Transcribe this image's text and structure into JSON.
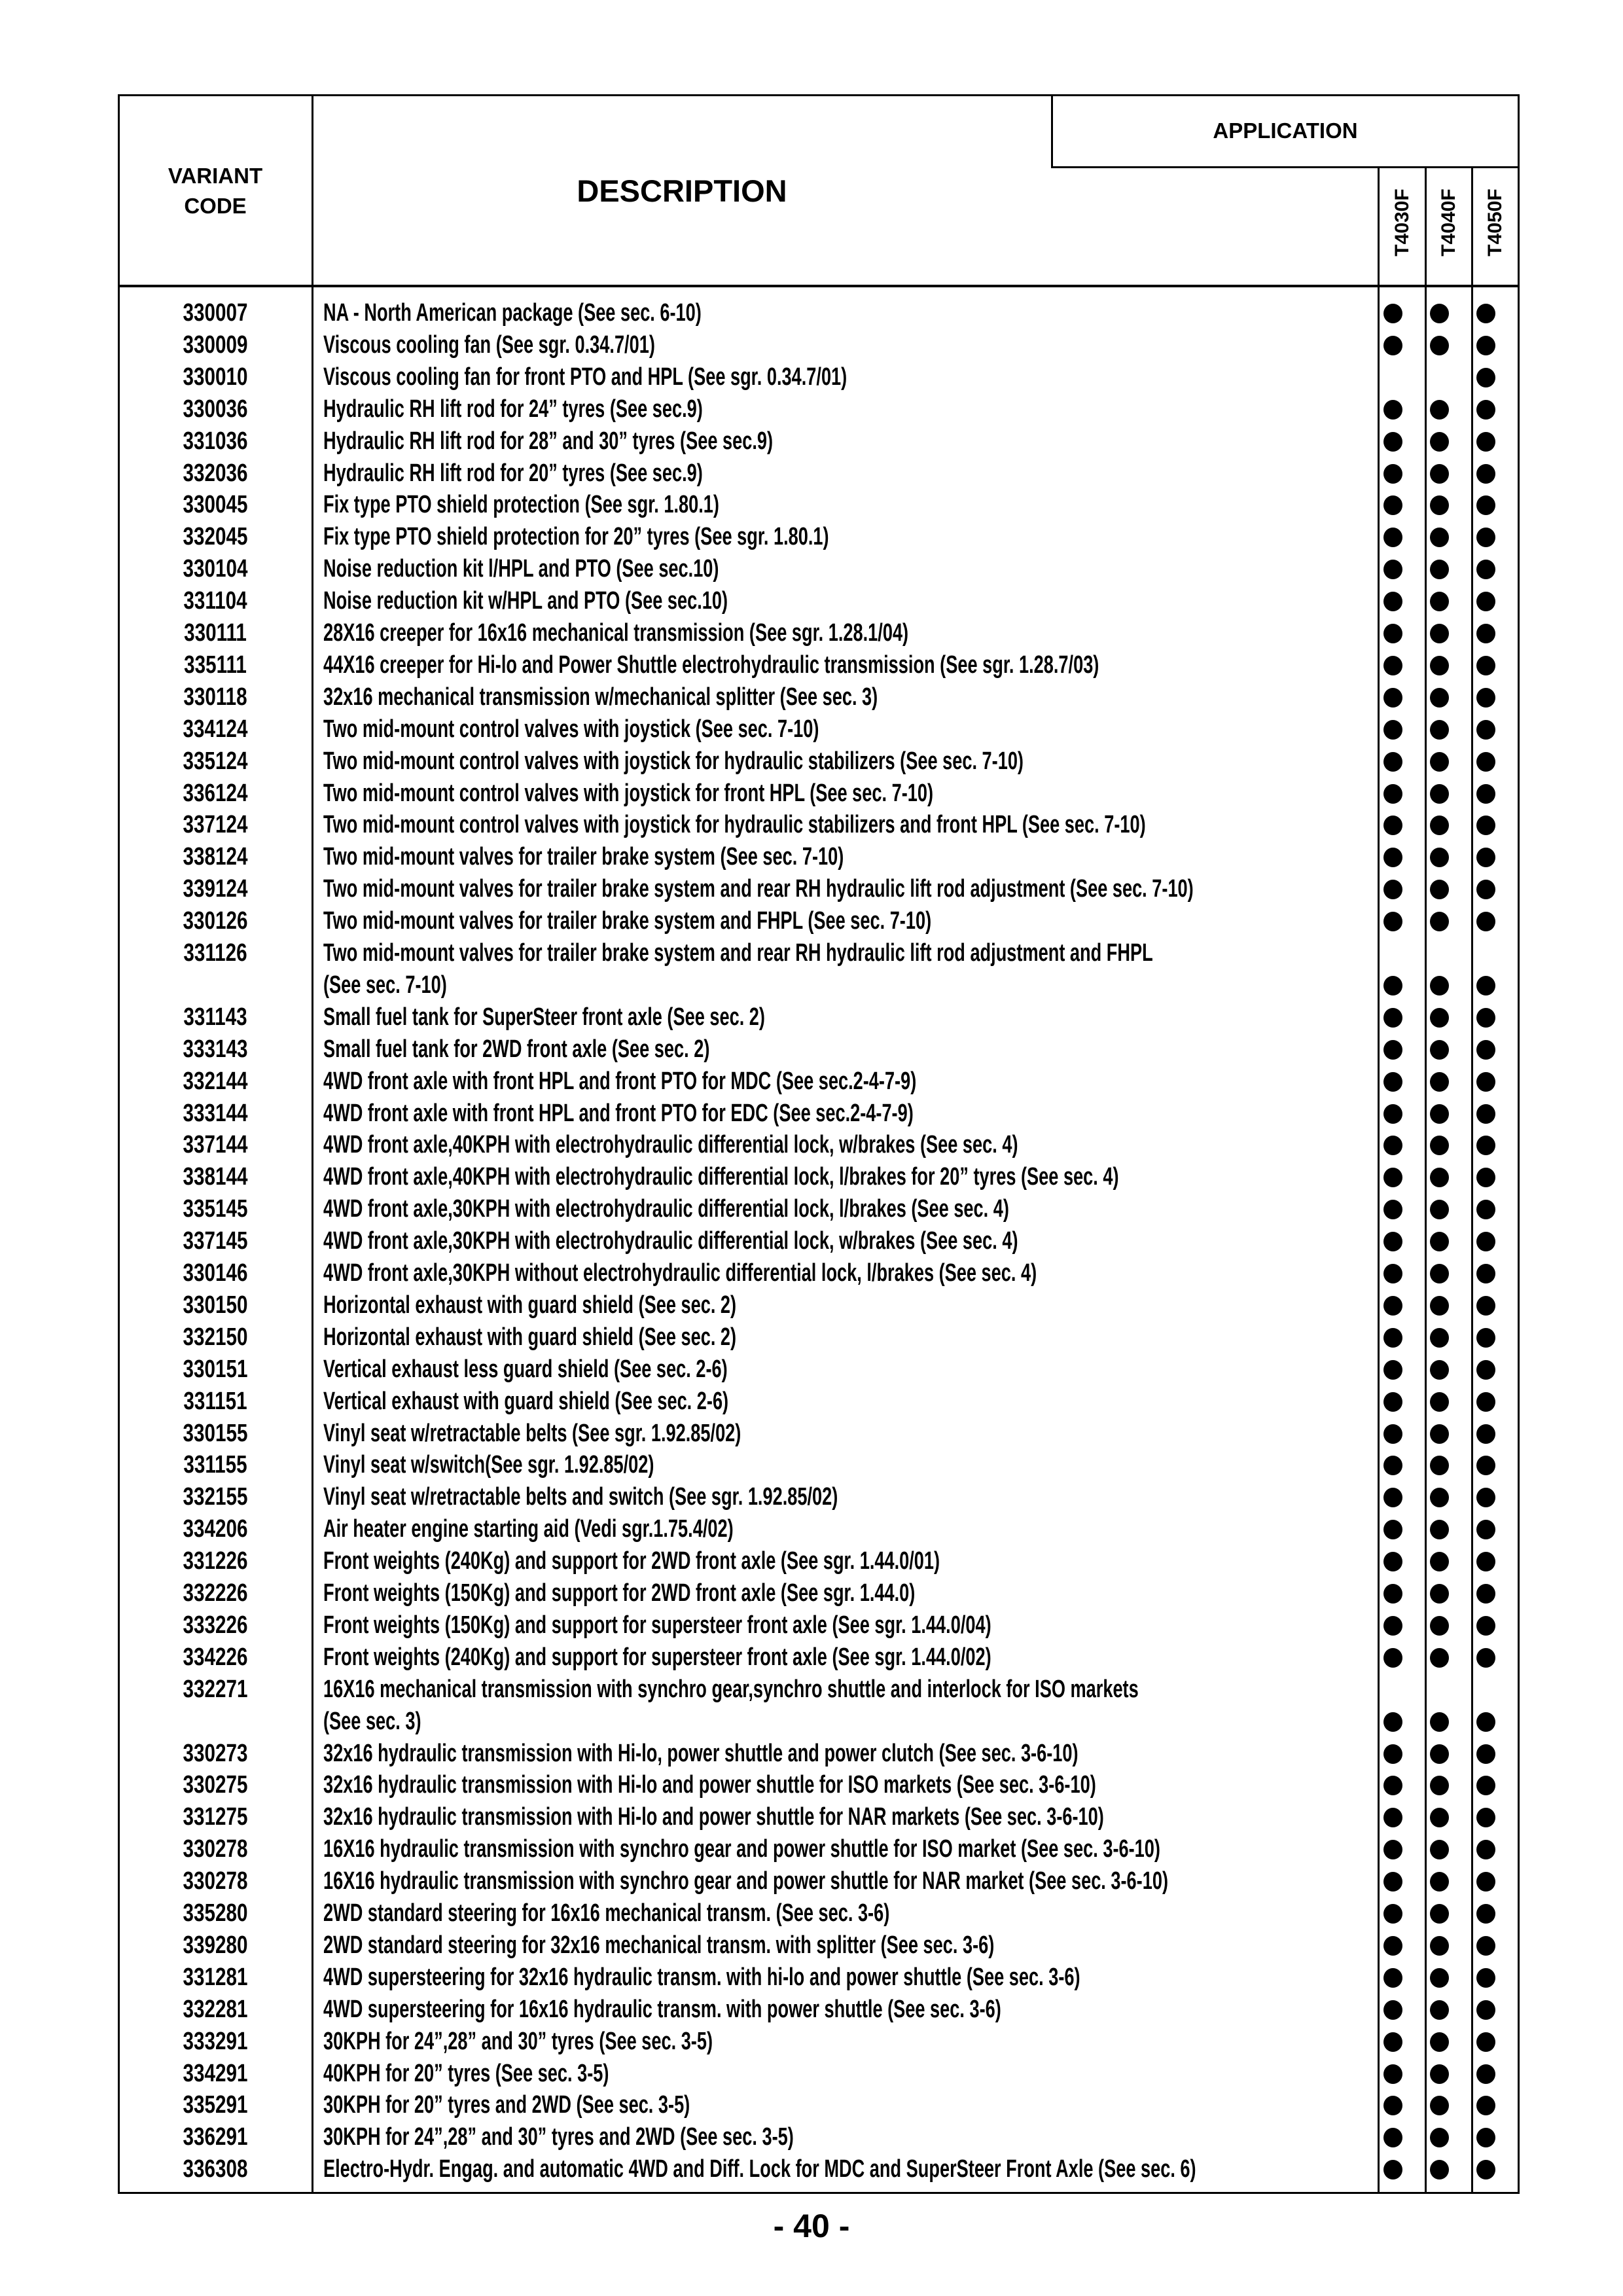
{
  "header": {
    "variant_code_line1": "VARIANT",
    "variant_code_line2": "CODE",
    "description": "DESCRIPTION",
    "application": "APPLICATION",
    "models": [
      "T4030F",
      "T4040F",
      "T4050F"
    ]
  },
  "rows": [
    {
      "code": "330007",
      "lines": [
        "NA - North American package (See sec. 6-10)"
      ],
      "apply": [
        true,
        true,
        true
      ]
    },
    {
      "code": "330009",
      "lines": [
        "Viscous cooling fan (See sgr. 0.34.7/01)"
      ],
      "apply": [
        true,
        true,
        true
      ]
    },
    {
      "code": "330010",
      "lines": [
        "Viscous cooling fan for front PTO and HPL (See sgr. 0.34.7/01)"
      ],
      "apply": [
        false,
        false,
        true
      ]
    },
    {
      "code": "330036",
      "lines": [
        "Hydraulic RH lift rod for 24” tyres (See sec.9)"
      ],
      "apply": [
        true,
        true,
        true
      ]
    },
    {
      "code": "331036",
      "lines": [
        "Hydraulic RH lift rod for 28” and 30” tyres (See sec.9)"
      ],
      "apply": [
        true,
        true,
        true
      ]
    },
    {
      "code": "332036",
      "lines": [
        "Hydraulic RH lift rod for 20” tyres (See sec.9)"
      ],
      "apply": [
        true,
        true,
        true
      ]
    },
    {
      "code": "330045",
      "lines": [
        "Fix type PTO shield protection (See sgr. 1.80.1)"
      ],
      "apply": [
        true,
        true,
        true
      ]
    },
    {
      "code": "332045",
      "lines": [
        "Fix type PTO shield protection for 20” tyres (See sgr. 1.80.1)"
      ],
      "apply": [
        true,
        true,
        true
      ]
    },
    {
      "code": "330104",
      "lines": [
        "Noise reduction kit l/HPL and PTO (See sec.10)"
      ],
      "apply": [
        true,
        true,
        true
      ]
    },
    {
      "code": "331104",
      "lines": [
        "Noise reduction kit w/HPL and PTO (See sec.10)"
      ],
      "apply": [
        true,
        true,
        true
      ]
    },
    {
      "code": "330111",
      "lines": [
        "28X16 creeper for 16x16 mechanical transmission (See sgr. 1.28.1/04)"
      ],
      "apply": [
        true,
        true,
        true
      ]
    },
    {
      "code": "335111",
      "lines": [
        "44X16 creeper for Hi-lo and Power Shuttle electrohydraulic transmission (See sgr. 1.28.7/03)"
      ],
      "apply": [
        true,
        true,
        true
      ]
    },
    {
      "code": "330118",
      "lines": [
        "32x16 mechanical transmission w/mechanical splitter (See sec. 3)"
      ],
      "apply": [
        true,
        true,
        true
      ]
    },
    {
      "code": "334124",
      "lines": [
        "Two mid-mount control valves with joystick (See sec. 7-10)"
      ],
      "apply": [
        true,
        true,
        true
      ]
    },
    {
      "code": "335124",
      "lines": [
        "Two mid-mount control valves with joystick for hydraulic stabilizers (See sec. 7-10)"
      ],
      "apply": [
        true,
        true,
        true
      ]
    },
    {
      "code": "336124",
      "lines": [
        "Two mid-mount control valves with joystick for front HPL (See sec. 7-10)"
      ],
      "apply": [
        true,
        true,
        true
      ]
    },
    {
      "code": "337124",
      "lines": [
        "Two mid-mount control valves with joystick for hydraulic stabilizers and front HPL (See sec. 7-10)"
      ],
      "apply": [
        true,
        true,
        true
      ]
    },
    {
      "code": "338124",
      "lines": [
        "Two mid-mount valves for trailer brake system (See sec. 7-10)"
      ],
      "apply": [
        true,
        true,
        true
      ]
    },
    {
      "code": "339124",
      "lines": [
        "Two mid-mount valves for trailer brake system and rear RH hydraulic lift rod adjustment (See sec. 7-10)"
      ],
      "apply": [
        true,
        true,
        true
      ]
    },
    {
      "code": "330126",
      "lines": [
        "Two mid-mount valves for trailer brake system and FHPL (See sec. 7-10)"
      ],
      "apply": [
        true,
        true,
        true
      ]
    },
    {
      "code": "331126",
      "lines": [
        "Two mid-mount valves for trailer brake system and rear RH hydraulic lift rod adjustment and FHPL",
        "(See sec. 7-10)"
      ],
      "apply": [
        true,
        true,
        true
      ]
    },
    {
      "code": "331143",
      "lines": [
        "Small fuel tank for SuperSteer front axle (See sec. 2)"
      ],
      "apply": [
        true,
        true,
        true
      ]
    },
    {
      "code": "333143",
      "lines": [
        "Small fuel tank for 2WD front axle (See sec. 2)"
      ],
      "apply": [
        true,
        true,
        true
      ]
    },
    {
      "code": "332144",
      "lines": [
        "4WD front axle with front HPL and front PTO for MDC (See sec.2-4-7-9)"
      ],
      "apply": [
        true,
        true,
        true
      ]
    },
    {
      "code": "333144",
      "lines": [
        "4WD front axle with front HPL and front PTO for EDC (See sec.2-4-7-9)"
      ],
      "apply": [
        true,
        true,
        true
      ]
    },
    {
      "code": "337144",
      "lines": [
        "4WD front axle,40KPH with electrohydraulic differential lock, w/brakes (See sec. 4)"
      ],
      "apply": [
        true,
        true,
        true
      ]
    },
    {
      "code": "338144",
      "lines": [
        "4WD front axle,40KPH with electrohydraulic differential lock, l/brakes for 20” tyres (See sec. 4)"
      ],
      "apply": [
        true,
        true,
        true
      ]
    },
    {
      "code": "335145",
      "lines": [
        "4WD front axle,30KPH with electrohydraulic differential lock, l/brakes (See sec. 4)"
      ],
      "apply": [
        true,
        true,
        true
      ]
    },
    {
      "code": "337145",
      "lines": [
        "4WD front axle,30KPH with electrohydraulic differential lock, w/brakes (See sec. 4)"
      ],
      "apply": [
        true,
        true,
        true
      ]
    },
    {
      "code": "330146",
      "lines": [
        "4WD front axle,30KPH without electrohydraulic differential lock, l/brakes (See sec. 4)"
      ],
      "apply": [
        true,
        true,
        true
      ]
    },
    {
      "code": "330150",
      "lines": [
        "Horizontal exhaust with guard shield (See sec. 2)"
      ],
      "apply": [
        true,
        true,
        true
      ]
    },
    {
      "code": "332150",
      "lines": [
        "Horizontal exhaust with guard shield (See sec. 2)"
      ],
      "apply": [
        true,
        true,
        true
      ]
    },
    {
      "code": "330151",
      "lines": [
        "Vertical exhaust less guard shield (See sec. 2-6)"
      ],
      "apply": [
        true,
        true,
        true
      ]
    },
    {
      "code": "331151",
      "lines": [
        "Vertical exhaust with guard shield (See sec. 2-6)"
      ],
      "apply": [
        true,
        true,
        true
      ]
    },
    {
      "code": "330155",
      "lines": [
        "Vinyl seat w/retractable belts (See sgr. 1.92.85/02)"
      ],
      "apply": [
        true,
        true,
        true
      ]
    },
    {
      "code": "331155",
      "lines": [
        "Vinyl seat w/switch(See sgr. 1.92.85/02)"
      ],
      "apply": [
        true,
        true,
        true
      ]
    },
    {
      "code": "332155",
      "lines": [
        "Vinyl seat w/retractable belts and switch (See sgr. 1.92.85/02)"
      ],
      "apply": [
        true,
        true,
        true
      ]
    },
    {
      "code": "334206",
      "lines": [
        "Air heater engine starting aid (Vedi sgr.1.75.4/02)"
      ],
      "apply": [
        true,
        true,
        true
      ]
    },
    {
      "code": "331226",
      "lines": [
        "Front weights (240Kg) and support for 2WD front axle (See sgr. 1.44.0/01)"
      ],
      "apply": [
        true,
        true,
        true
      ]
    },
    {
      "code": "332226",
      "lines": [
        "Front weights (150Kg) and support for 2WD front axle (See sgr. 1.44.0)"
      ],
      "apply": [
        true,
        true,
        true
      ]
    },
    {
      "code": "333226",
      "lines": [
        "Front weights (150Kg) and support for supersteer front axle (See sgr. 1.44.0/04)"
      ],
      "apply": [
        true,
        true,
        true
      ]
    },
    {
      "code": "334226",
      "lines": [
        "Front weights (240Kg) and support for supersteer front axle (See sgr. 1.44.0/02)"
      ],
      "apply": [
        true,
        true,
        true
      ]
    },
    {
      "code": "332271",
      "lines": [
        "16X16 mechanical transmission with synchro gear,synchro shuttle and interlock for ISO markets",
        "(See sec. 3)"
      ],
      "apply": [
        true,
        true,
        true
      ]
    },
    {
      "code": "330273",
      "lines": [
        "32x16 hydraulic transmission with Hi-lo, power shuttle and power clutch (See sec. 3-6-10)"
      ],
      "apply": [
        true,
        true,
        true
      ]
    },
    {
      "code": "330275",
      "lines": [
        "32x16 hydraulic transmission with Hi-lo and power shuttle for ISO markets (See sec. 3-6-10)"
      ],
      "apply": [
        true,
        true,
        true
      ]
    },
    {
      "code": "331275",
      "lines": [
        "32x16 hydraulic transmission with Hi-lo and power shuttle for NAR markets (See sec. 3-6-10)"
      ],
      "apply": [
        true,
        true,
        true
      ]
    },
    {
      "code": "330278",
      "lines": [
        "16X16 hydraulic transmission with synchro gear and power shuttle for ISO market (See sec. 3-6-10)"
      ],
      "apply": [
        true,
        true,
        true
      ]
    },
    {
      "code": "330278",
      "lines": [
        "16X16 hydraulic transmission with synchro gear and power shuttle for NAR market (See sec. 3-6-10)"
      ],
      "apply": [
        true,
        true,
        true
      ]
    },
    {
      "code": "335280",
      "lines": [
        "2WD standard steering for 16x16 mechanical transm. (See sec. 3-6)"
      ],
      "apply": [
        true,
        true,
        true
      ]
    },
    {
      "code": "339280",
      "lines": [
        "2WD standard steering for 32x16 mechanical transm. with splitter (See sec. 3-6)"
      ],
      "apply": [
        true,
        true,
        true
      ]
    },
    {
      "code": "331281",
      "lines": [
        "4WD supersteering for 32x16 hydraulic transm. with hi-lo and power shuttle (See sec. 3-6)"
      ],
      "apply": [
        true,
        true,
        true
      ]
    },
    {
      "code": "332281",
      "lines": [
        "4WD supersteering for 16x16 hydraulic transm. with power shuttle (See sec. 3-6)"
      ],
      "apply": [
        true,
        true,
        true
      ]
    },
    {
      "code": "333291",
      "lines": [
        "30KPH for 24”,28” and 30” tyres (See sec. 3-5)"
      ],
      "apply": [
        true,
        true,
        true
      ]
    },
    {
      "code": "334291",
      "lines": [
        "40KPH for 20” tyres (See sec. 3-5)"
      ],
      "apply": [
        true,
        true,
        true
      ]
    },
    {
      "code": "335291",
      "lines": [
        "30KPH for 20” tyres and 2WD (See sec. 3-5)"
      ],
      "apply": [
        true,
        true,
        true
      ]
    },
    {
      "code": "336291",
      "lines": [
        "30KPH for 24”,28” and 30” tyres and 2WD (See sec. 3-5)"
      ],
      "apply": [
        true,
        true,
        true
      ]
    },
    {
      "code": "336308",
      "lines": [
        "Electro-Hydr. Engag. and automatic 4WD and Diff. Lock for MDC and SuperSteer Front Axle (See sec. 6)"
      ],
      "apply": [
        true,
        true,
        true
      ]
    }
  ],
  "page_number": "- 40 -"
}
